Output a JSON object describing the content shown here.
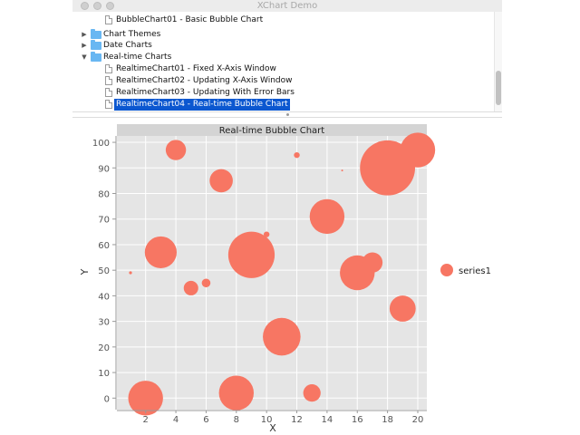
{
  "window": {
    "title": "XChart Demo"
  },
  "tree": {
    "items": [
      {
        "label": "BubbleChart01 - Basic Bubble Chart",
        "kind": "file",
        "level": 1
      },
      {
        "label": "Chart Themes",
        "kind": "folder",
        "level": 0,
        "expanded": false
      },
      {
        "label": "Date Charts",
        "kind": "folder",
        "level": 0,
        "expanded": false
      },
      {
        "label": "Real-time Charts",
        "kind": "folder",
        "level": 0,
        "expanded": true
      },
      {
        "label": "RealtimeChart01 - Fixed X-Axis Window",
        "kind": "file",
        "level": 1
      },
      {
        "label": "RealtimeChart02 - Updating X-Axis Window",
        "kind": "file",
        "level": 1
      },
      {
        "label": "RealtimeChart03 - Updating With Error Bars",
        "kind": "file",
        "level": 1
      },
      {
        "label": "RealtimeChart04 - Real-time Bubble Chart",
        "kind": "file",
        "level": 1,
        "selected": true
      }
    ],
    "icons": {
      "folder": "folder-icon",
      "file": "file-icon",
      "collapsed": "triangle-right-icon",
      "expanded": "triangle-down-icon"
    }
  },
  "colors": {
    "selection": "#0b57d0",
    "plot_background": "#e5e5e5",
    "title_box": "#d4d4d4",
    "bubble": "#f77663",
    "grid": "#ffffff"
  },
  "chart_data": {
    "type": "scatter",
    "title": "Real-time Bubble Chart",
    "xlabel": "X",
    "ylabel": "Y",
    "xlim": [
      0.1,
      20.6
    ],
    "ylim": [
      -4.5,
      102.5
    ],
    "x_ticks": [
      2,
      4,
      6,
      8,
      10,
      12,
      14,
      16,
      18,
      20
    ],
    "y_ticks": [
      0,
      10,
      20,
      30,
      40,
      50,
      60,
      70,
      80,
      90,
      100
    ],
    "grid": true,
    "legend_position": "right",
    "series": [
      {
        "name": "series1",
        "color": "#f77663",
        "points": [
          {
            "x": 1,
            "y": 49,
            "size": 1
          },
          {
            "x": 2,
            "y": 0,
            "size": 12
          },
          {
            "x": 3,
            "y": 57,
            "size": 11
          },
          {
            "x": 4,
            "y": 97,
            "size": 7
          },
          {
            "x": 5,
            "y": 43,
            "size": 5
          },
          {
            "x": 6,
            "y": 45,
            "size": 3
          },
          {
            "x": 7,
            "y": 85,
            "size": 8
          },
          {
            "x": 8,
            "y": 2,
            "size": 12
          },
          {
            "x": 9,
            "y": 56,
            "size": 16
          },
          {
            "x": 10,
            "y": 64,
            "size": 2
          },
          {
            "x": 11,
            "y": 24,
            "size": 13
          },
          {
            "x": 12,
            "y": 95,
            "size": 2
          },
          {
            "x": 13,
            "y": 2,
            "size": 6
          },
          {
            "x": 14,
            "y": 71,
            "size": 12
          },
          {
            "x": 15,
            "y": 89,
            "size": 0.3
          },
          {
            "x": 16,
            "y": 49,
            "size": 12
          },
          {
            "x": 17,
            "y": 53,
            "size": 7
          },
          {
            "x": 18,
            "y": 90,
            "size": 19
          },
          {
            "x": 19,
            "y": 35,
            "size": 9
          },
          {
            "x": 20,
            "y": 97,
            "size": 12
          }
        ]
      }
    ]
  }
}
